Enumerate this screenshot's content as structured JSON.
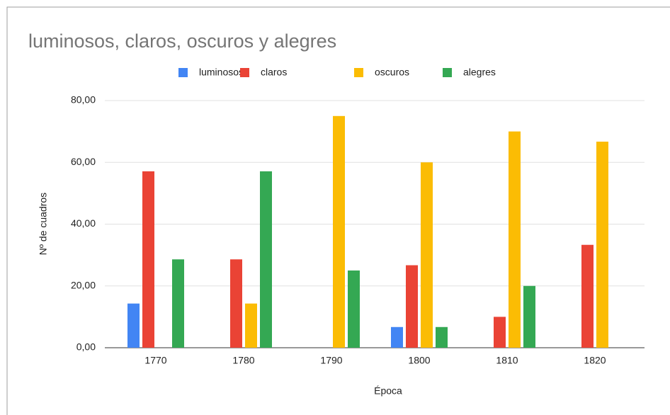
{
  "chart_data": {
    "type": "bar",
    "title": "luminosos, claros, oscuros y alegres",
    "x_label": "Época",
    "y_label": "Nº de cuadros",
    "categories": [
      "1770",
      "1780",
      "1790",
      "1800",
      "1810",
      "1820"
    ],
    "series": [
      {
        "name": "luminosos",
        "color": "#4285f4",
        "values": [
          14.3,
          0,
          0,
          6.7,
          0,
          0
        ]
      },
      {
        "name": "claros",
        "color": "#ea4335",
        "values": [
          57.1,
          28.6,
          0,
          26.7,
          10,
          33.3
        ]
      },
      {
        "name": "oscuros",
        "color": "#fbbc04",
        "values": [
          0,
          14.3,
          75,
          60,
          70,
          66.7
        ]
      },
      {
        "name": "alegres",
        "color": "#34a853",
        "values": [
          28.6,
          57.1,
          25,
          6.7,
          20,
          0
        ]
      }
    ],
    "ylim": [
      0,
      80
    ],
    "yticks": [
      {
        "value": 0,
        "label": "0,00"
      },
      {
        "value": 20,
        "label": "20,00"
      },
      {
        "value": 40,
        "label": "40,00"
      },
      {
        "value": 60,
        "label": "60,00"
      },
      {
        "value": 80,
        "label": "80,00"
      }
    ],
    "grid": true,
    "legend": "top"
  }
}
